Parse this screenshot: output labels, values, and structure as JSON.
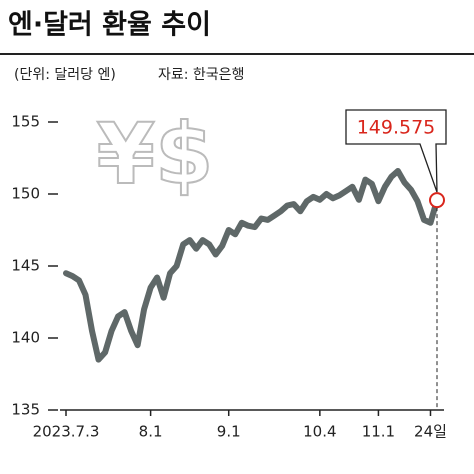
{
  "chart_data": {
    "type": "line",
    "title": "엔·달러 환율 추이",
    "unit_note": "(단위: 달러당 엔)",
    "source": "자료: 한국은행",
    "watermark": "¥$",
    "categories": [
      "2023.7.3",
      null,
      null,
      null,
      null,
      null,
      null,
      null,
      null,
      null,
      null,
      null,
      null,
      "8.1",
      null,
      null,
      null,
      null,
      null,
      null,
      null,
      null,
      null,
      null,
      null,
      "9.1",
      null,
      null,
      null,
      null,
      null,
      null,
      null,
      null,
      null,
      null,
      null,
      null,
      null,
      "10.4",
      null,
      null,
      null,
      null,
      null,
      null,
      null,
      null,
      "11.1",
      null,
      null,
      null,
      null,
      null,
      null,
      null,
      "24일",
      null
    ],
    "series": [
      {
        "color": "#5f6868",
        "values": [
          144.5,
          144.3,
          144.0,
          143.0,
          140.5,
          138.5,
          139.0,
          140.5,
          141.5,
          141.8,
          140.5,
          139.5,
          142.0,
          143.5,
          144.2,
          142.8,
          144.5,
          145.0,
          146.5,
          146.8,
          146.2,
          146.8,
          146.5,
          145.8,
          146.4,
          147.5,
          147.2,
          148.0,
          147.8,
          147.7,
          148.3,
          148.2,
          148.5,
          148.8,
          149.2,
          149.3,
          148.8,
          149.5,
          149.8,
          149.6,
          150.0,
          149.7,
          149.9,
          150.2,
          150.5,
          149.6,
          151.0,
          150.7,
          149.5,
          150.5,
          151.2,
          151.6,
          150.8,
          150.3,
          149.5,
          148.2,
          148.0,
          149.575
        ]
      }
    ],
    "highlight_color": "#d9261c",
    "ylim": [
      135,
      155
    ],
    "yticks": [
      135,
      140,
      145,
      150,
      155
    ]
  }
}
